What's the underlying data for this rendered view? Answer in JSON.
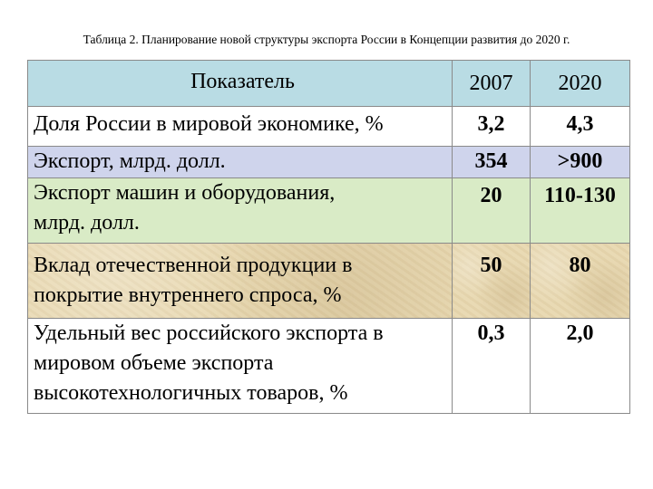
{
  "caption": "Таблица 2. Планирование новой структуры экспорта России в Концепции развития до 2020 г.",
  "table": {
    "headers": [
      "Показатель",
      "2007",
      "2020"
    ],
    "rows": [
      {
        "indicator_lines": [
          "Доля России в мировой экономике, %"
        ],
        "v2007": "3,2",
        "v2020": "4,3"
      },
      {
        "indicator_lines": [
          "Экспорт, млрд. долл."
        ],
        "v2007": "354",
        "v2020": ">900"
      },
      {
        "indicator_lines": [
          "Экспорт машин и оборудования,",
          "млрд. долл."
        ],
        "v2007": "20",
        "v2020": "110-130"
      },
      {
        "indicator_lines": [
          "Вклад отечественной продукции в",
          "покрытие внутреннего спроса, %"
        ],
        "v2007": "50",
        "v2020": "80"
      },
      {
        "indicator_lines": [
          "Удельный вес российского экспорта в",
          "мировом объеме экспорта",
          "высокотехнологичных товаров, %"
        ],
        "v2007": "0,3",
        "v2020": "2,0"
      }
    ]
  },
  "colors": {
    "header": "#b9dce4",
    "row_export": "#cfd4ec",
    "row_machinery": "#d9ebc6",
    "row_domestic": "#e8d8b0",
    "row_plain": "#ffffff"
  }
}
